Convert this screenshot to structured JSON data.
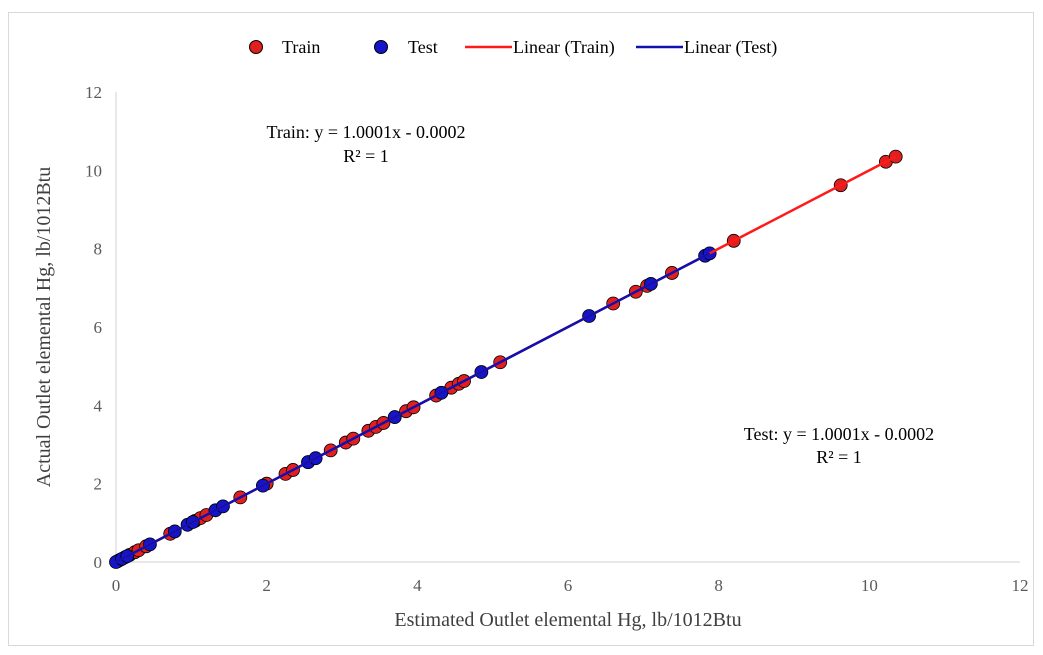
{
  "chart_data": {
    "type": "scatter",
    "title": "",
    "xlabel": "Estimated Outlet elemental Hg, lb/1012Btu",
    "ylabel": "Actual Outlet elemental Hg, lb/1012Btu",
    "xlim": [
      0,
      12
    ],
    "ylim": [
      0,
      12
    ],
    "x_ticks": [
      "0",
      "2",
      "4",
      "6",
      "8",
      "10",
      "12"
    ],
    "y_ticks": [
      "0",
      "2",
      "4",
      "6",
      "8",
      "10",
      "12"
    ],
    "grid": false,
    "legend": {
      "position": "top",
      "items": [
        {
          "label": "Train",
          "kind": "marker",
          "color": "#e01f1f"
        },
        {
          "label": "Test",
          "kind": "marker",
          "color": "#1414c8"
        },
        {
          "label": "Linear (Train)",
          "kind": "line",
          "color": "#ff1a1a"
        },
        {
          "label": "Linear (Test)",
          "kind": "line",
          "color": "#1010b0"
        }
      ]
    },
    "series": [
      {
        "name": "Train",
        "color": "#e01f1f",
        "x": [
          0.02,
          0.05,
          0.12,
          0.18,
          0.25,
          0.3,
          0.4,
          0.72,
          1.05,
          1.12,
          1.2,
          1.65,
          2.0,
          2.25,
          2.35,
          2.55,
          2.85,
          3.05,
          3.15,
          3.35,
          3.45,
          3.55,
          3.85,
          3.95,
          4.25,
          4.45,
          4.55,
          4.62,
          5.1,
          6.6,
          6.9,
          7.05,
          7.38,
          8.2,
          9.62,
          10.22,
          10.35
        ],
        "y": [
          0.02,
          0.05,
          0.12,
          0.18,
          0.25,
          0.3,
          0.4,
          0.72,
          1.05,
          1.12,
          1.2,
          1.65,
          2.0,
          2.25,
          2.35,
          2.55,
          2.85,
          3.05,
          3.15,
          3.35,
          3.45,
          3.55,
          3.85,
          3.95,
          4.25,
          4.45,
          4.55,
          4.62,
          5.1,
          6.6,
          6.9,
          7.05,
          7.38,
          8.2,
          9.62,
          10.22,
          10.35
        ]
      },
      {
        "name": "Test",
        "color": "#1414c8",
        "x": [
          0.0,
          0.08,
          0.15,
          0.45,
          0.78,
          0.95,
          1.02,
          1.32,
          1.42,
          1.95,
          2.55,
          2.65,
          3.7,
          4.32,
          4.85,
          6.28,
          7.1,
          7.82,
          7.88
        ],
        "y": [
          0.0,
          0.08,
          0.15,
          0.45,
          0.78,
          0.95,
          1.02,
          1.32,
          1.42,
          1.95,
          2.55,
          2.65,
          3.7,
          4.32,
          4.85,
          6.28,
          7.1,
          7.82,
          7.88
        ]
      }
    ],
    "trendlines": [
      {
        "name": "Linear (Train)",
        "slope": 1.0001,
        "intercept": -0.0002,
        "x_range": [
          0,
          10.35
        ],
        "color": "#ff1a1a"
      },
      {
        "name": "Linear (Test)",
        "slope": 1.0001,
        "intercept": -0.0002,
        "x_range": [
          0,
          7.88
        ],
        "color": "#1010b0"
      }
    ],
    "annotations": {
      "train_equation": "Train: y = 1.0001x - 0.0002",
      "train_r2": "R² = 1",
      "test_equation": "Test: y = 1.0001x - 0.0002",
      "test_r2": "R² = 1"
    }
  }
}
